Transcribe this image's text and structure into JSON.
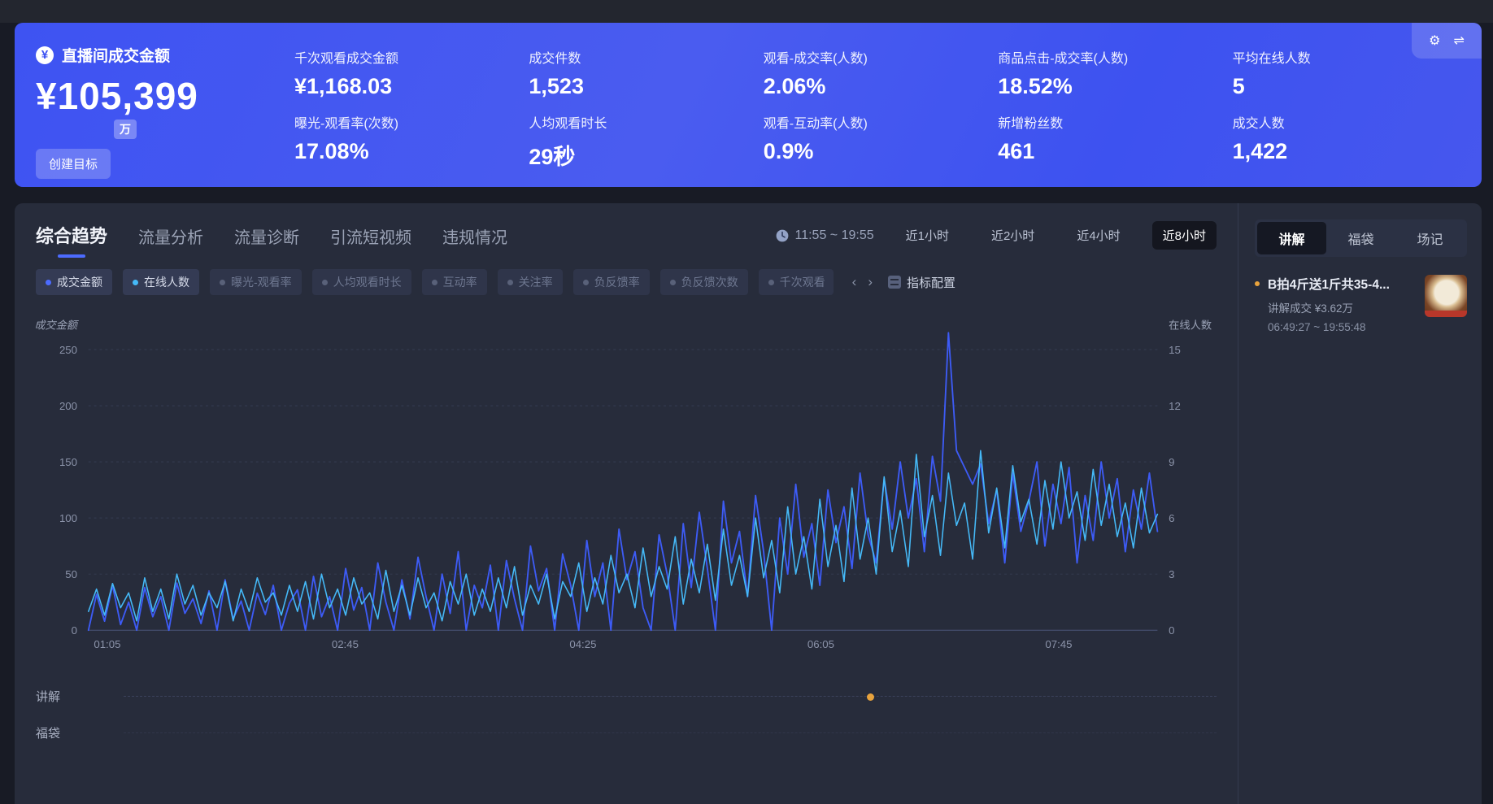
{
  "colors": {
    "accent": "#4c6bff",
    "banner_blue": "#4156f0",
    "series_gmv": "#3d5bf5",
    "series_online": "#45b9f7",
    "marker_orange": "#e8a33d"
  },
  "banner": {
    "primary": {
      "label": "直播间成交金额",
      "value": "¥105,399",
      "unit": "万",
      "button": "创建目标"
    },
    "metrics": [
      {
        "label": "千次观看成交金额",
        "value": "¥1,168.03"
      },
      {
        "label": "成交件数",
        "value": "1,523"
      },
      {
        "label": "观看-成交率(人数)",
        "value": "2.06%"
      },
      {
        "label": "商品点击-成交率(人数)",
        "value": "18.52%"
      },
      {
        "label": "平均在线人数",
        "value": "5"
      },
      {
        "label": "曝光-观看率(次数)",
        "value": "17.08%"
      },
      {
        "label": "人均观看时长",
        "value": "29秒"
      },
      {
        "label": "观看-互动率(人数)",
        "value": "0.9%"
      },
      {
        "label": "新增粉丝数",
        "value": "461"
      },
      {
        "label": "成交人数",
        "value": "1,422"
      }
    ],
    "tools": {
      "settings": "⚙",
      "swap": "⇌"
    }
  },
  "tabs": [
    {
      "label": "综合趋势",
      "active": true
    },
    {
      "label": "流量分析",
      "active": false
    },
    {
      "label": "流量诊断",
      "active": false
    },
    {
      "label": "引流短视频",
      "active": false
    },
    {
      "label": "违规情况",
      "active": false
    }
  ],
  "time_controls": {
    "range": "11:55 ~ 19:55",
    "buttons": [
      {
        "label": "近1小时",
        "active": false
      },
      {
        "label": "近2小时",
        "active": false
      },
      {
        "label": "近4小时",
        "active": false
      },
      {
        "label": "近8小时",
        "active": true
      }
    ]
  },
  "chips": [
    {
      "label": "成交金额",
      "active": true,
      "dot_color": "#4c6bff"
    },
    {
      "label": "在线人数",
      "active": true,
      "dot_color": "#45b9f7"
    },
    {
      "label": "曝光-观看率",
      "active": false,
      "dot_color": "#596179"
    },
    {
      "label": "人均观看时长",
      "active": false,
      "dot_color": "#596179"
    },
    {
      "label": "互动率",
      "active": false,
      "dot_color": "#596179"
    },
    {
      "label": "关注率",
      "active": false,
      "dot_color": "#596179"
    },
    {
      "label": "负反馈率",
      "active": false,
      "dot_color": "#596179"
    },
    {
      "label": "负反馈次数",
      "active": false,
      "dot_color": "#596179"
    },
    {
      "label": "千次观看",
      "active": false,
      "dot_color": "#596179"
    }
  ],
  "chip_nav": {
    "prev": "‹",
    "next": "›",
    "config_label": "指标配置"
  },
  "chart_data": {
    "type": "line",
    "ylabel_left": "成交金额",
    "ylabel_right": "在线人数",
    "y_left_ticks": [
      0,
      50,
      100,
      150,
      200,
      250
    ],
    "y_right_ticks": [
      0,
      3,
      6,
      9,
      12,
      15
    ],
    "y_left_max": 270,
    "y_right_max": 16.2,
    "x_ticks": {
      "labels": [
        "01:05",
        "02:45",
        "04:25",
        "06:05",
        "07:45"
      ],
      "positions": [
        0.005,
        0.2275,
        0.45,
        0.6725,
        0.895
      ]
    },
    "grid": true,
    "legend_position": "chips-top",
    "series": [
      {
        "name": "成交金额",
        "axis": "left",
        "color": "#3d5bf5",
        "values": [
          0,
          32,
          8,
          40,
          5,
          25,
          0,
          38,
          12,
          30,
          0,
          42,
          15,
          28,
          6,
          35,
          0,
          45,
          10,
          26,
          0,
          33,
          14,
          40,
          0,
          24,
          36,
          0,
          48,
          12,
          30,
          0,
          55,
          18,
          38,
          0,
          60,
          25,
          0,
          45,
          10,
          65,
          30,
          0,
          50,
          15,
          70,
          0,
          40,
          20,
          58,
          0,
          62,
          28,
          0,
          75,
          35,
          55,
          0,
          68,
          40,
          0,
          80,
          30,
          60,
          0,
          90,
          45,
          70,
          20,
          0,
          85,
          50,
          0,
          95,
          38,
          105,
          55,
          0,
          115,
          60,
          88,
          30,
          120,
          70,
          0,
          100,
          50,
          130,
          65,
          95,
          40,
          125,
          78,
          110,
          55,
          140,
          85,
          60,
          135,
          90,
          150,
          100,
          135,
          70,
          155,
          115,
          265,
          160,
          145,
          130,
          148,
          95,
          125,
          60,
          140,
          88,
          115,
          150,
          75,
          130,
          95,
          145,
          60,
          120,
          80,
          150,
          100,
          135,
          70,
          125,
          90,
          140,
          88
        ]
      },
      {
        "name": "在线人数",
        "axis": "right",
        "color": "#45b9f7",
        "values": [
          1,
          2.2,
          0.8,
          2.5,
          1.2,
          2,
          0.5,
          2.8,
          1,
          2.2,
          0.6,
          3,
          1.4,
          2.4,
          0.8,
          2,
          1.2,
          2.6,
          0.5,
          2.2,
          1,
          2.8,
          1.5,
          2,
          0.8,
          2.4,
          1,
          2.6,
          0.6,
          3,
          1.2,
          2.2,
          0.8,
          2.8,
          1.4,
          2,
          0.6,
          3.2,
          1,
          2.4,
          0.8,
          2.8,
          1.2,
          2,
          0.5,
          2.6,
          1.4,
          3,
          0.8,
          2.2,
          1,
          2.8,
          1.2,
          3.4,
          0.8,
          2.4,
          1.4,
          3,
          0.6,
          2.6,
          1.8,
          3.6,
          1,
          2.8,
          1.4,
          4,
          2,
          3,
          1.2,
          4.4,
          1.8,
          3.4,
          2.2,
          5,
          1.4,
          3.8,
          2,
          4.6,
          1.6,
          5.4,
          2.4,
          4,
          1.8,
          6,
          2.8,
          4.8,
          2,
          6.6,
          3,
          5,
          2.2,
          7,
          3.4,
          5.6,
          2.6,
          7.6,
          3.8,
          6,
          3,
          8.2,
          4.2,
          6.4,
          3.4,
          9.4,
          5,
          7.2,
          4,
          8.4,
          5.6,
          6.8,
          3.8,
          9.6,
          5.2,
          7.6,
          4.4,
          8.8,
          5.8,
          7,
          4.6,
          8,
          5.4,
          9,
          6,
          7.4,
          4.8,
          8.6,
          5.6,
          7.8,
          5,
          6.8,
          4.4,
          7.6,
          5.2,
          6.2
        ]
      }
    ]
  },
  "timeline": {
    "rows": [
      {
        "label": "讲解",
        "marker_position": 0.68,
        "marker_color": "#e8a33d"
      },
      {
        "label": "福袋"
      }
    ]
  },
  "right_panel": {
    "tabs": [
      {
        "label": "讲解",
        "active": true
      },
      {
        "label": "福袋",
        "active": false
      },
      {
        "label": "场记",
        "active": false
      }
    ],
    "items": [
      {
        "title": "B拍4斤送1斤共35-4...",
        "subtitle": "讲解成交 ¥3.62万",
        "time": "06:49:27 ~ 19:55:48",
        "dot_color": "#e8a33d"
      }
    ]
  }
}
